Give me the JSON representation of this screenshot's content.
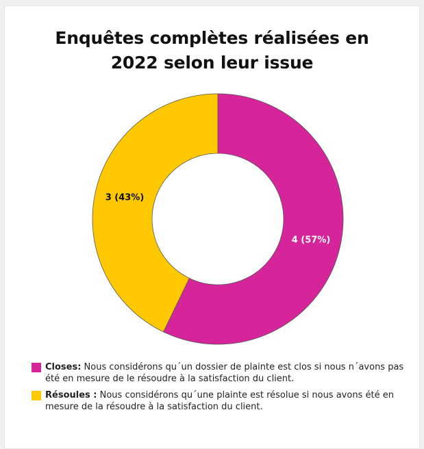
{
  "chart_data": {
    "type": "pie",
    "title_lines": [
      "Enquêtes complètes réalisées en",
      "2022 selon leur issue"
    ],
    "slices": [
      {
        "name": "Closes",
        "value": 4,
        "label": "4 (57%)",
        "color": "#d6249a",
        "label_color": "#ffffff"
      },
      {
        "name": "Résoules",
        "value": 3,
        "label": "3 (43%)",
        "color": "#ffc800",
        "label_color": "#111111"
      }
    ],
    "legend": [
      {
        "name": "Closes:",
        "text": " Nous considérons qu´un dossier de plainte est clos si nous n´avons pas été en mesure de le résoudre à la satisfaction du client.",
        "color": "#d6249a"
      },
      {
        "name": "Résoules :",
        "text": " Nous considérons qu´une plainte est résolue si nous avons été en mesure de la résoudre à la satisfaction du client.",
        "color": "#ffc800"
      }
    ],
    "legend_position": "bottom"
  }
}
